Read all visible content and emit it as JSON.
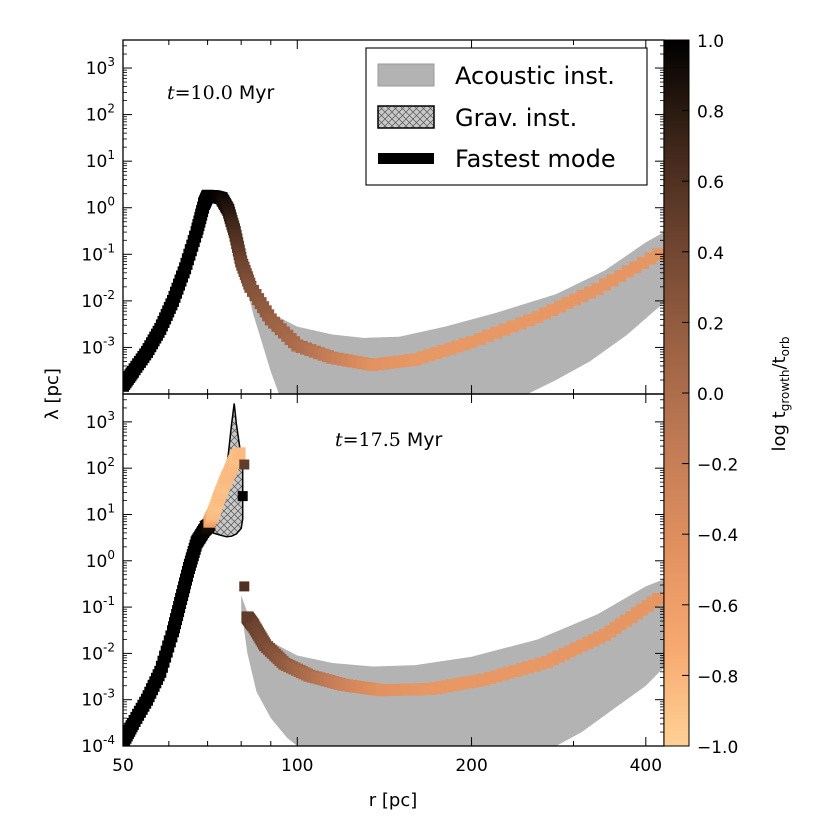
{
  "chart_data": {
    "type": "line",
    "title": "",
    "xlabel": "r [pc]",
    "ylabel": "λ [pc]",
    "x_scale": "log",
    "y_scale": "log",
    "xlim": [
      50,
      430
    ],
    "ylim": [
      0.0001,
      4000
    ],
    "x_ticks": [
      {
        "value": 50,
        "label": "50"
      },
      {
        "value": 100,
        "label": "100"
      },
      {
        "value": 200,
        "label": "200"
      },
      {
        "value": 400,
        "label": "400"
      }
    ],
    "y_ticks": [
      {
        "value": 0.0001,
        "base": "10",
        "exp": "-4"
      },
      {
        "value": 0.001,
        "base": "10",
        "exp": "-3"
      },
      {
        "value": 0.01,
        "base": "10",
        "exp": "-2"
      },
      {
        "value": 0.1,
        "base": "10",
        "exp": "-1"
      },
      {
        "value": 1,
        "base": "10",
        "exp": "0"
      },
      {
        "value": 10,
        "base": "10",
        "exp": "1"
      },
      {
        "value": 100,
        "base": "10",
        "exp": "2"
      },
      {
        "value": 1000,
        "base": "10",
        "exp": "3"
      }
    ],
    "legend": {
      "placement": "top-right of upper panel",
      "entries": [
        {
          "label": "Acoustic inst.",
          "kind": "gray-fill"
        },
        {
          "label": "Grav. inst.",
          "kind": "hatched-fill"
        },
        {
          "label": "Fastest mode",
          "kind": "thick-line"
        }
      ]
    },
    "colorbar": {
      "label_main": "log t",
      "label_sub1": "growth",
      "label_sep": "/t",
      "label_sub2": "orb",
      "range": [
        -1.0,
        1.0
      ],
      "tick_labels": [
        "1.0",
        "0.8",
        "0.6",
        "0.4",
        "0.2",
        "0.0",
        "−0.2",
        "−0.4",
        "−0.6",
        "−0.8",
        "−1.0"
      ],
      "colors": [
        "#000000",
        "#3c2518",
        "#6e4430",
        "#9a6143",
        "#c07a55",
        "#e0905f",
        "#f6a870",
        "#ffd195"
      ]
    },
    "panels": [
      {
        "annotation_t": "t",
        "annotation_eq": "=10.0",
        "annotation_unit": " Myr",
        "acoustic_upper": [
          [
            81,
            0.03
          ],
          [
            84,
            0.013
          ],
          [
            90,
            0.0055
          ],
          [
            100,
            0.0028
          ],
          [
            115,
            0.0019
          ],
          [
            130,
            0.0016
          ],
          [
            150,
            0.0017
          ],
          [
            180,
            0.0028
          ],
          [
            220,
            0.0055
          ],
          [
            280,
            0.014
          ],
          [
            340,
            0.045
          ],
          [
            400,
            0.18
          ],
          [
            430,
            0.3
          ]
        ],
        "acoustic_lower": [
          [
            81,
            0.03
          ],
          [
            84,
            0.005
          ],
          [
            87,
            0.0012
          ],
          [
            90,
            0.0003
          ],
          [
            93,
            0.0001
          ],
          [
            250,
            0.0001
          ],
          [
            280,
            0.0002
          ],
          [
            320,
            0.0005
          ],
          [
            370,
            0.0018
          ],
          [
            410,
            0.0055
          ],
          [
            430,
            0.009
          ]
        ],
        "fastest_mode": [
          {
            "r": 50,
            "lam": 0.00015,
            "c": 1.0
          },
          {
            "r": 52,
            "lam": 0.0003,
            "c": 1.0
          },
          {
            "r": 55,
            "lam": 0.0008,
            "c": 1.0
          },
          {
            "r": 58,
            "lam": 0.0025,
            "c": 1.0
          },
          {
            "r": 61,
            "lam": 0.01,
            "c": 1.0
          },
          {
            "r": 64,
            "lam": 0.05,
            "c": 1.0
          },
          {
            "r": 67,
            "lam": 0.3,
            "c": 1.0
          },
          {
            "r": 69,
            "lam": 1.2,
            "c": 1.0
          },
          {
            "r": 70,
            "lam": 1.8,
            "c": 1.0
          },
          {
            "r": 72,
            "lam": 1.75,
            "c": 1.0
          },
          {
            "r": 74,
            "lam": 1.6,
            "c": 0.95
          },
          {
            "r": 76,
            "lam": 0.9,
            "c": 0.85
          },
          {
            "r": 78,
            "lam": 0.3,
            "c": 0.65
          },
          {
            "r": 80,
            "lam": 0.07,
            "c": 0.45
          },
          {
            "r": 83,
            "lam": 0.02,
            "c": 0.3
          },
          {
            "r": 90,
            "lam": 0.004,
            "c": 0.15
          },
          {
            "r": 100,
            "lam": 0.0011,
            "c": 0.02
          },
          {
            "r": 115,
            "lam": 0.0006,
            "c": -0.2
          },
          {
            "r": 135,
            "lam": 0.00042,
            "c": -0.45
          },
          {
            "r": 160,
            "lam": 0.00055,
            "c": -0.52
          },
          {
            "r": 200,
            "lam": 0.0013,
            "c": -0.52
          },
          {
            "r": 260,
            "lam": 0.0045,
            "c": -0.52
          },
          {
            "r": 330,
            "lam": 0.018,
            "c": -0.5
          },
          {
            "r": 420,
            "lam": 0.1,
            "c": -0.5
          }
        ]
      },
      {
        "annotation_t": "t",
        "annotation_eq": "=17.5",
        "annotation_unit": " Myr",
        "acoustic_upper": [
          [
            80,
            0.18
          ],
          [
            83,
            0.05
          ],
          [
            90,
            0.018
          ],
          [
            100,
            0.009
          ],
          [
            115,
            0.0062
          ],
          [
            135,
            0.0052
          ],
          [
            160,
            0.0056
          ],
          [
            200,
            0.0085
          ],
          [
            260,
            0.02
          ],
          [
            330,
            0.07
          ],
          [
            400,
            0.28
          ],
          [
            430,
            0.4
          ]
        ],
        "acoustic_lower": [
          [
            80,
            0.09
          ],
          [
            82,
            0.01
          ],
          [
            85,
            0.0015
          ],
          [
            90,
            0.0004
          ],
          [
            96,
            0.00015
          ],
          [
            100,
            0.0001
          ],
          [
            280,
            0.0001
          ],
          [
            310,
            0.0002
          ],
          [
            350,
            0.0006
          ],
          [
            400,
            0.002
          ],
          [
            430,
            0.005
          ]
        ],
        "grav_upper": [
          [
            68,
            7.0
          ],
          [
            70,
            9.0
          ],
          [
            72,
            15.0
          ],
          [
            74,
            26.0
          ],
          [
            75,
            45.0
          ],
          [
            76,
            200.0
          ],
          [
            77,
            900.0
          ],
          [
            77.8,
            2500.0
          ],
          [
            78.5,
            900.0
          ],
          [
            79.5,
            300.0
          ],
          [
            80.5,
            90.0
          ]
        ],
        "grav_lower": [
          [
            80.5,
            90.0
          ],
          [
            80.5,
            8.0
          ],
          [
            80,
            5.0
          ],
          [
            78.5,
            3.8
          ],
          [
            77,
            3.4
          ],
          [
            75.5,
            3.3
          ],
          [
            73.5,
            3.6
          ],
          [
            71.5,
            4.0
          ],
          [
            69.5,
            5.0
          ],
          [
            68,
            7.0
          ]
        ],
        "fastest_mode": [
          {
            "r": 50,
            "lam": 0.00012,
            "c": 1.0
          },
          {
            "r": 52,
            "lam": 0.0003,
            "c": 1.0
          },
          {
            "r": 55,
            "lam": 0.001,
            "c": 1.0
          },
          {
            "r": 58,
            "lam": 0.004,
            "c": 1.0
          },
          {
            "r": 61,
            "lam": 0.03,
            "c": 1.0
          },
          {
            "r": 63,
            "lam": 0.15,
            "c": 1.0
          },
          {
            "r": 65,
            "lam": 0.7,
            "c": 1.0
          },
          {
            "r": 67,
            "lam": 2.5,
            "c": 1.0
          },
          {
            "r": 69,
            "lam": 4.5,
            "c": 1.0
          },
          {
            "r": 70.5,
            "lam": 6.0,
            "c": 0.9
          }
        ],
        "fastest_mode_upper": [
          {
            "r": 70.5,
            "lam": 7.0,
            "c": -0.6
          },
          {
            "r": 71.5,
            "lam": 10.0,
            "c": -0.85
          },
          {
            "r": 72.5,
            "lam": 16.0,
            "c": -0.9
          },
          {
            "r": 73.5,
            "lam": 26.0,
            "c": -0.85
          },
          {
            "r": 74.5,
            "lam": 40.0,
            "c": -0.9
          },
          {
            "r": 75.5,
            "lam": 60.0,
            "c": -0.85
          },
          {
            "r": 76.5,
            "lam": 85.0,
            "c": -0.85
          },
          {
            "r": 77.5,
            "lam": 130.0,
            "c": -0.85
          },
          {
            "r": 78.5,
            "lam": 180.0,
            "c": -0.9
          },
          {
            "r": 79.5,
            "lam": 210.0,
            "c": -0.85
          }
        ],
        "fastest_mode_outer": [
          {
            "r": 82,
            "lam": 0.06,
            "c": 0.55
          },
          {
            "r": 84,
            "lam": 0.04,
            "c": 0.45
          },
          {
            "r": 88,
            "lam": 0.015,
            "c": 0.35
          },
          {
            "r": 95,
            "lam": 0.006,
            "c": 0.2
          },
          {
            "r": 105,
            "lam": 0.0033,
            "c": 0.0
          },
          {
            "r": 120,
            "lam": 0.0021,
            "c": -0.25
          },
          {
            "r": 140,
            "lam": 0.0016,
            "c": -0.45
          },
          {
            "r": 170,
            "lam": 0.0017,
            "c": -0.52
          },
          {
            "r": 210,
            "lam": 0.0027,
            "c": -0.52
          },
          {
            "r": 270,
            "lam": 0.0065,
            "c": -0.52
          },
          {
            "r": 340,
            "lam": 0.025,
            "c": -0.5
          },
          {
            "r": 420,
            "lam": 0.15,
            "c": -0.5
          }
        ],
        "scatter_markers": [
          {
            "r": 81,
            "lam": 120.0,
            "c": 0.5
          },
          {
            "r": 80.5,
            "lam": 25.0,
            "c": 1.0
          },
          {
            "r": 81,
            "lam": 0.28,
            "c": 0.6
          },
          {
            "r": 82,
            "lam": 0.06,
            "c": 0.5
          }
        ]
      }
    ]
  }
}
